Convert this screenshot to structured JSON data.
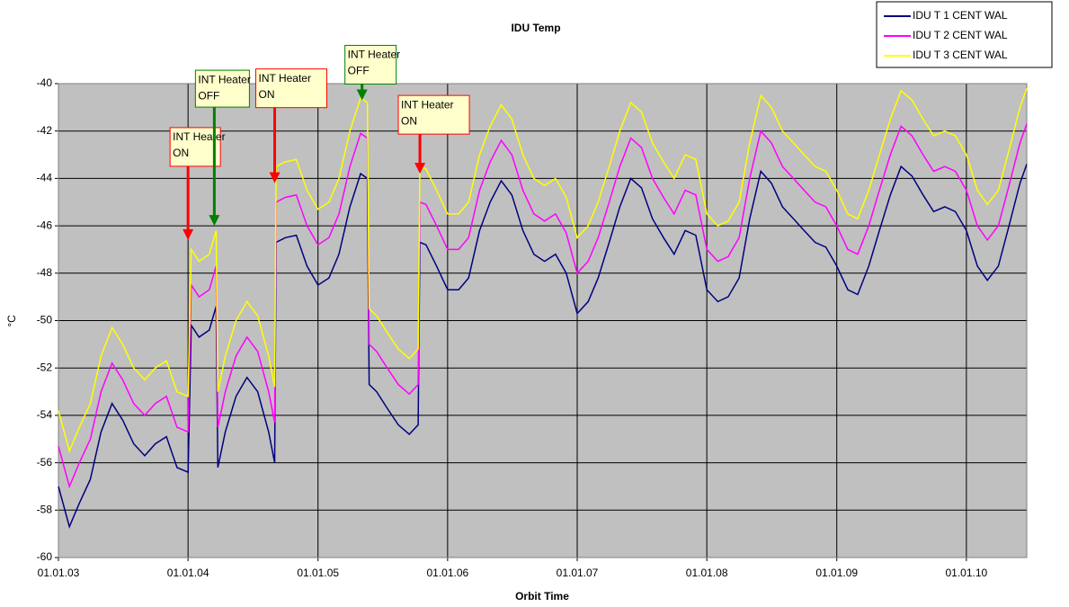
{
  "chart_data": {
    "type": "line",
    "title": "IDU Temp",
    "x_label": "Orbit Time",
    "y_label": "°C",
    "xlim": [
      "2003-01-01",
      "2010-06-20"
    ],
    "xticks": [
      {
        "value": "2003-01-01",
        "label": "01.01.03"
      },
      {
        "value": "2004-01-01",
        "label": "01.01.04"
      },
      {
        "value": "2005-01-01",
        "label": "01.01.05"
      },
      {
        "value": "2006-01-01",
        "label": "01.01.06"
      },
      {
        "value": "2007-01-01",
        "label": "01.01.07"
      },
      {
        "value": "2008-01-01",
        "label": "01.01.08"
      },
      {
        "value": "2009-01-01",
        "label": "01.01.09"
      },
      {
        "value": "2010-01-01",
        "label": "01.01.10"
      }
    ],
    "ylim": [
      -60,
      -40
    ],
    "yticks": [
      -60,
      -58,
      -56,
      -54,
      -52,
      -50,
      -48,
      -46,
      -44,
      -42,
      -40
    ],
    "grid": true,
    "legend": "top-right",
    "x": [
      "2003-01-01",
      "2003-02-01",
      "2003-03-01",
      "2003-04-01",
      "2003-05-01",
      "2003-06-01",
      "2003-07-01",
      "2003-08-01",
      "2003-09-01",
      "2003-10-01",
      "2003-11-01",
      "2003-12-01",
      "2004-01-01",
      "2004-01-10",
      "2004-02-01",
      "2004-03-01",
      "2004-03-20",
      "2004-03-25",
      "2004-04-15",
      "2004-05-15",
      "2004-06-15",
      "2004-07-15",
      "2004-08-15",
      "2004-09-01",
      "2004-09-05",
      "2004-10-01",
      "2004-11-01",
      "2004-12-01",
      "2005-01-01",
      "2005-02-01",
      "2005-03-01",
      "2005-04-01",
      "2005-05-01",
      "2005-05-20",
      "2005-05-25",
      "2005-06-15",
      "2005-07-15",
      "2005-08-15",
      "2005-09-15",
      "2005-10-10",
      "2005-10-15",
      "2005-11-01",
      "2005-12-01",
      "2006-01-01",
      "2006-02-01",
      "2006-03-01",
      "2006-04-01",
      "2006-05-01",
      "2006-06-01",
      "2006-07-01",
      "2006-08-01",
      "2006-09-01",
      "2006-10-01",
      "2006-11-01",
      "2006-12-01",
      "2007-01-01",
      "2007-02-01",
      "2007-03-01",
      "2007-04-01",
      "2007-05-01",
      "2007-06-01",
      "2007-07-01",
      "2007-08-01",
      "2007-09-01",
      "2007-10-01",
      "2007-11-01",
      "2007-12-01",
      "2008-01-01",
      "2008-02-01",
      "2008-03-01",
      "2008-04-01",
      "2008-05-01",
      "2008-06-01",
      "2008-07-01",
      "2008-08-01",
      "2008-09-01",
      "2008-10-01",
      "2008-11-01",
      "2008-12-01",
      "2009-01-01",
      "2009-02-01",
      "2009-03-01",
      "2009-04-01",
      "2009-05-01",
      "2009-06-01",
      "2009-07-01",
      "2009-08-01",
      "2009-09-01",
      "2009-10-01",
      "2009-11-01",
      "2009-12-01",
      "2010-01-01",
      "2010-02-01",
      "2010-03-01",
      "2010-04-01",
      "2010-05-01",
      "2010-06-01",
      "2010-06-20"
    ],
    "series": [
      {
        "name": "IDU T 1 CENT WAL",
        "color": "#000080",
        "values": [
          -57,
          -58.7,
          -57.7,
          -56.7,
          -54.7,
          -53.5,
          -54.2,
          -55.2,
          -55.7,
          -55.2,
          -54.9,
          -56.2,
          -56.4,
          -50.2,
          -50.7,
          -50.4,
          -49.4,
          -56.2,
          -54.7,
          -53.2,
          -52.4,
          -53,
          -54.7,
          -56,
          -46.7,
          -46.5,
          -46.4,
          -47.7,
          -48.5,
          -48.2,
          -47.2,
          -45.2,
          -43.8,
          -44,
          -52.7,
          -53,
          -53.7,
          -54.4,
          -54.8,
          -54.4,
          -46.7,
          -46.8,
          -47.7,
          -48.7,
          -48.7,
          -48.2,
          -46.2,
          -45,
          -44.1,
          -44.7,
          -46.2,
          -47.2,
          -47.5,
          -47.2,
          -48,
          -49.7,
          -49.2,
          -48.2,
          -46.7,
          -45.2,
          -44,
          -44.4,
          -45.7,
          -46.5,
          -47.2,
          -46.2,
          -46.4,
          -48.7,
          -49.2,
          -49,
          -48.2,
          -45.7,
          -43.7,
          -44.2,
          -45.2,
          -45.7,
          -46.2,
          -46.7,
          -46.9,
          -47.7,
          -48.7,
          -48.9,
          -47.7,
          -46.2,
          -44.7,
          -43.5,
          -43.9,
          -44.7,
          -45.4,
          -45.2,
          -45.4,
          -46.2,
          -47.7,
          -48.3,
          -47.7,
          -46,
          -44.2,
          -43.4
        ]
      },
      {
        "name": "IDU T 2 CENT WAL",
        "color": "#ff00ff",
        "values": [
          -55.3,
          -57,
          -56,
          -55,
          -53,
          -51.8,
          -52.5,
          -53.5,
          -54,
          -53.5,
          -53.2,
          -54.5,
          -54.7,
          -48.5,
          -49,
          -48.7,
          -47.7,
          -54.5,
          -53,
          -51.5,
          -50.7,
          -51.3,
          -53,
          -54.3,
          -45,
          -44.8,
          -44.7,
          -46,
          -46.8,
          -46.5,
          -45.5,
          -43.5,
          -42.1,
          -42.3,
          -51,
          -51.3,
          -52,
          -52.7,
          -53.1,
          -52.7,
          -45,
          -45.1,
          -46,
          -47,
          -47,
          -46.5,
          -44.5,
          -43.3,
          -42.4,
          -43,
          -44.5,
          -45.5,
          -45.8,
          -45.5,
          -46.3,
          -48,
          -47.5,
          -46.5,
          -45,
          -43.5,
          -42.3,
          -42.7,
          -44,
          -44.8,
          -45.5,
          -44.5,
          -44.7,
          -47,
          -47.5,
          -47.3,
          -46.5,
          -44,
          -42,
          -42.5,
          -43.5,
          -44,
          -44.5,
          -45,
          -45.2,
          -46,
          -47,
          -47.2,
          -46,
          -44.5,
          -43,
          -41.8,
          -42.2,
          -43,
          -43.7,
          -43.5,
          -43.7,
          -44.5,
          -46,
          -46.6,
          -46,
          -44.3,
          -42.5,
          -41.7
        ]
      },
      {
        "name": "IDU T 3 CENT WAL",
        "color": "#ffff00",
        "values": [
          -53.8,
          -55.5,
          -54.5,
          -53.5,
          -51.5,
          -50.3,
          -51,
          -52,
          -52.5,
          -52,
          -51.7,
          -53,
          -53.2,
          -47,
          -47.5,
          -47.2,
          -46.2,
          -53,
          -51.5,
          -50,
          -49.2,
          -49.8,
          -51.5,
          -52.8,
          -43.5,
          -43.3,
          -43.2,
          -44.5,
          -45.3,
          -45,
          -44,
          -42,
          -40.6,
          -40.8,
          -49.5,
          -49.8,
          -50.5,
          -51.2,
          -51.6,
          -51.2,
          -43.5,
          -43.6,
          -44.5,
          -45.5,
          -45.5,
          -45,
          -43,
          -41.8,
          -40.9,
          -41.5,
          -43,
          -44,
          -44.3,
          -44,
          -44.8,
          -46.5,
          -46,
          -45,
          -43.5,
          -42,
          -40.8,
          -41.2,
          -42.5,
          -43.3,
          -44,
          -43,
          -43.2,
          -45.5,
          -46,
          -45.8,
          -45,
          -42.5,
          -40.5,
          -41,
          -42,
          -42.5,
          -43,
          -43.5,
          -43.7,
          -44.5,
          -45.5,
          -45.7,
          -44.5,
          -43,
          -41.5,
          -40.3,
          -40.7,
          -41.5,
          -42.2,
          -42,
          -42.2,
          -43,
          -44.5,
          -45.1,
          -44.5,
          -42.8,
          -41,
          -40.2
        ]
      }
    ],
    "annotations": [
      {
        "lines": [
          "INT Heater",
          "ON"
        ],
        "x": "2004-01-01",
        "y": -46.6,
        "color": "#ff0000"
      },
      {
        "lines": [
          "INT Heater",
          "OFF"
        ],
        "x": "2004-03-15",
        "y": -46,
        "color": "#008000"
      },
      {
        "lines": [
          "INT Heater",
          "ON"
        ],
        "x": "2004-09-01",
        "y": -44.2,
        "color": "#ff0000"
      },
      {
        "lines": [
          "INT Heater",
          "OFF"
        ],
        "x": "2005-05-05",
        "y": -40.7,
        "color": "#008000"
      },
      {
        "lines": [
          "INT Heater",
          "ON"
        ],
        "x": "2005-10-15",
        "y": -43.8,
        "color": "#ff0000"
      }
    ]
  }
}
